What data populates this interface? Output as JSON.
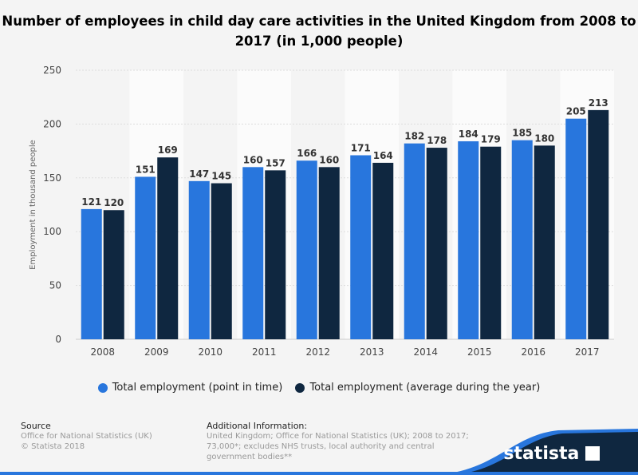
{
  "title": "Number of employees in child day care activities in the United Kingdom from 2008 to 2017 (in 1,000 people)",
  "chart_data": {
    "type": "bar",
    "categories": [
      "2008",
      "2009",
      "2010",
      "2011",
      "2012",
      "2013",
      "2014",
      "2015",
      "2016",
      "2017"
    ],
    "series": [
      {
        "name": "Total employment (point in time)",
        "color": "#2876dd",
        "values": [
          121,
          151,
          147,
          160,
          166,
          171,
          182,
          184,
          185,
          205
        ]
      },
      {
        "name": "Total employment (average during the year)",
        "color": "#0f2740",
        "values": [
          120,
          169,
          145,
          157,
          160,
          164,
          178,
          179,
          180,
          213
        ]
      }
    ],
    "ylabel": "Employment in thousand people",
    "ylim": [
      0,
      250
    ],
    "yticks": [
      0,
      50,
      100,
      150,
      200,
      250
    ],
    "grid": true,
    "legend": "bottom",
    "data_labels": true
  },
  "footer": {
    "source_heading": "Source",
    "source_lines": [
      "Office for National Statistics (UK)",
      "© Statista 2018"
    ],
    "info_heading": "Additional Information:",
    "info_lines": [
      "United Kingdom; Office for National Statistics (UK); 2008 to 2017;",
      "73,000*; excludes NHS trusts, local authority and central",
      "government bodies**"
    ],
    "brand": "statista"
  }
}
